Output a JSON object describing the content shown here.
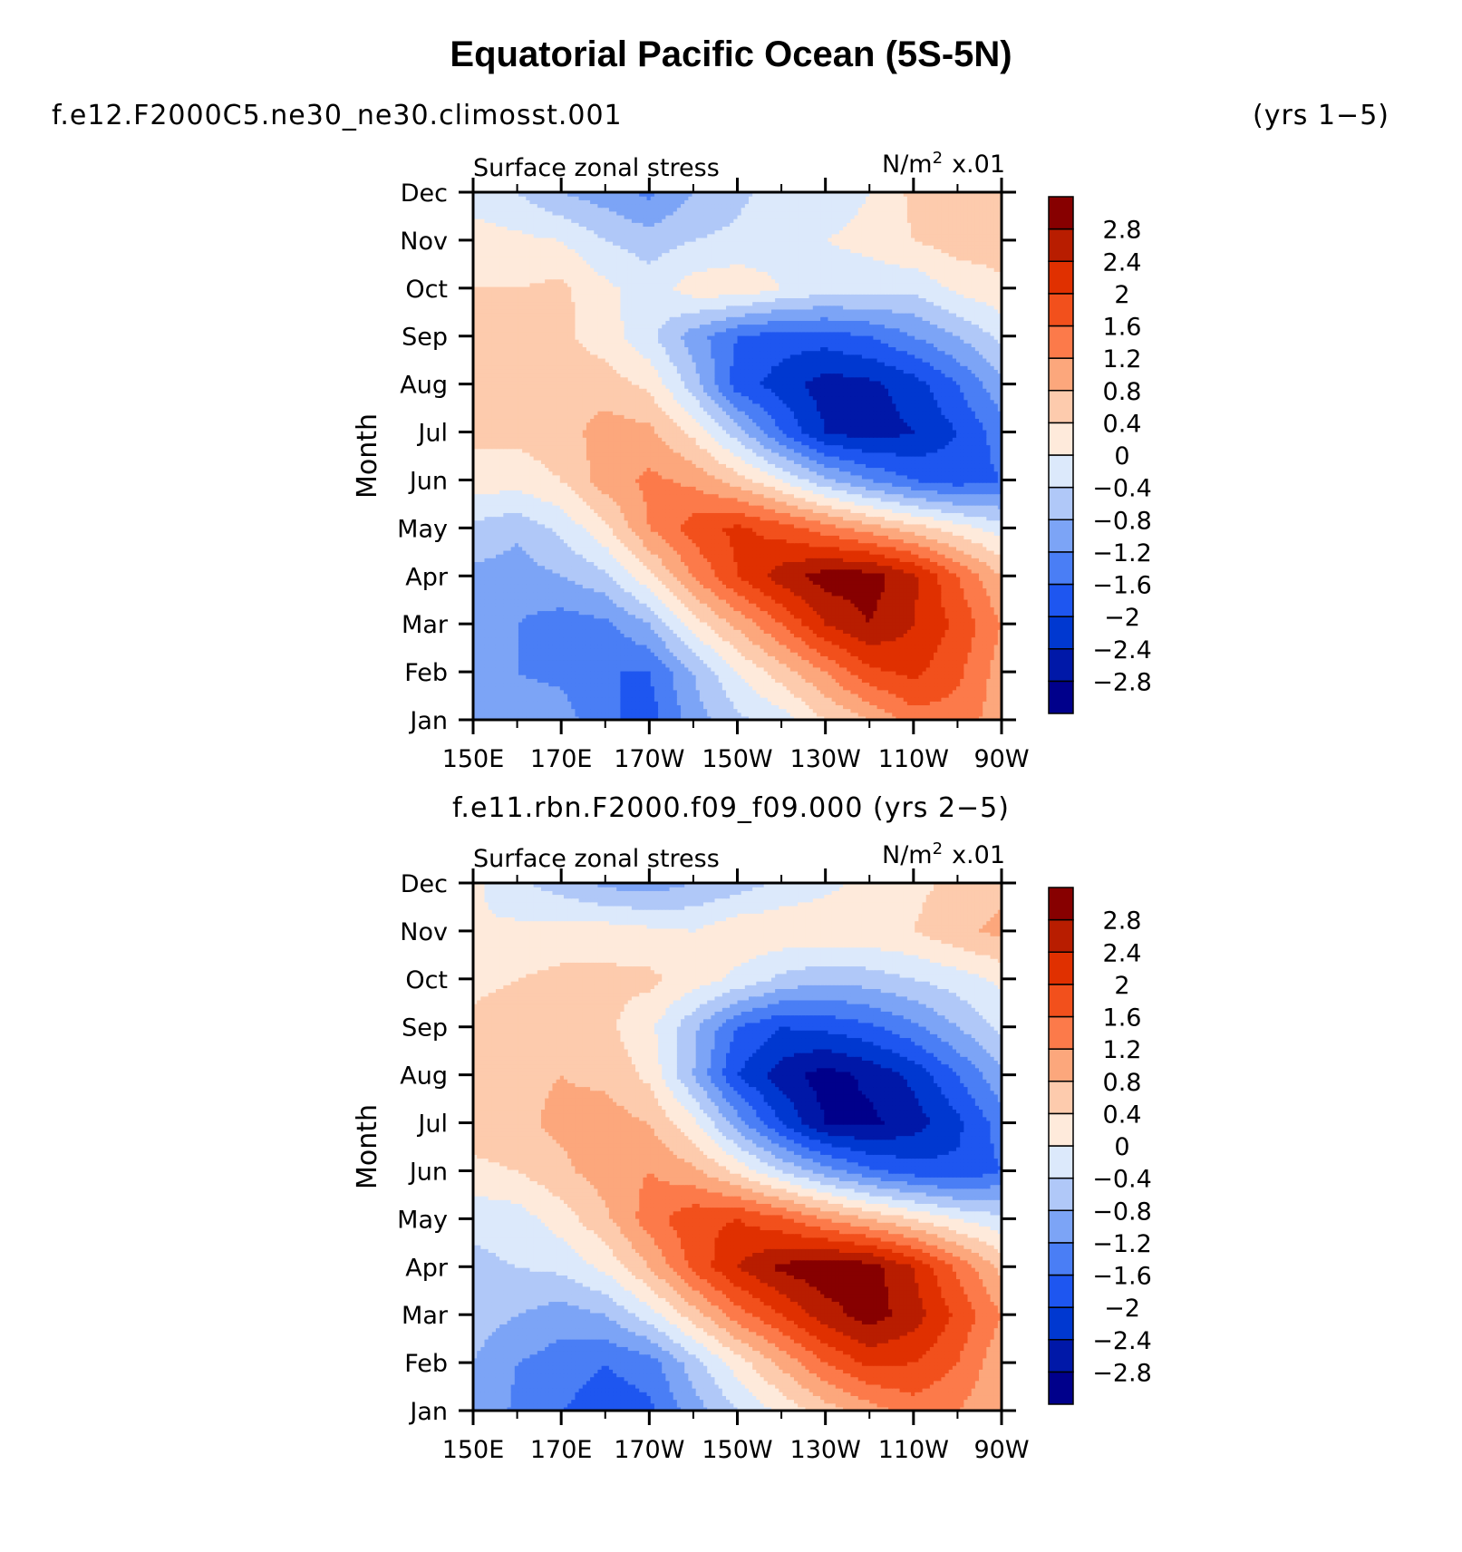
{
  "page": {
    "title": "Equatorial Pacific Ocean (5S-5N)",
    "run_left": "f.e12.F2000C5.ne30_ne30.climosst.001",
    "run_right": "(yrs  1−5)",
    "run_center": "f.e11.rbn.F2000.f09_f09.000 (yrs 2−5)"
  },
  "palette": {
    "levels": [
      -2.8,
      -2.4,
      -2.0,
      -1.6,
      -1.2,
      -0.8,
      -0.4,
      0.0,
      0.4,
      0.8,
      1.2,
      1.6,
      2.0,
      2.4,
      2.8
    ],
    "level_labels": [
      "−2.8",
      "−2.4",
      "−2",
      "−1.6",
      "−1.2",
      "−0.8",
      "−0.4",
      "0",
      "0.4",
      "0.8",
      "1.2",
      "1.6",
      "2",
      "2.4",
      "2.8"
    ],
    "colors": [
      "#00008b",
      "#0018a8",
      "#0038d0",
      "#1e56f0",
      "#4a7ef5",
      "#7ca4f6",
      "#b0c8f8",
      "#dce9fb",
      "#feeadb",
      "#fdcbad",
      "#fca77c",
      "#fc7a4a",
      "#f2501c",
      "#e03000",
      "#b81d00",
      "#870000"
    ]
  },
  "chart_data": [
    {
      "type": "heatmap",
      "title": "f.e12.F2000C5.ne30_ne30.climosst.001",
      "subtitle": "(yrs  1−5)",
      "left_label": "Surface zonal stress",
      "right_label_unit": "N/m",
      "right_label_sup": "2",
      "right_label_scale": "x.01",
      "ylabel": "Month",
      "xticks": [
        "150E",
        "170E",
        "170W",
        "150W",
        "130W",
        "110W",
        "90W"
      ],
      "yticks": [
        "Jan",
        "Feb",
        "Mar",
        "Apr",
        "May",
        "Jun",
        "Jul",
        "Aug",
        "Sep",
        "Oct",
        "Nov",
        "Dec"
      ],
      "x_lon": [
        150,
        160,
        170,
        180,
        190,
        200,
        210,
        220,
        230,
        240,
        250,
        260,
        270
      ],
      "values": [
        [
          -0.9,
          -1.0,
          -1.0,
          -1.5,
          -1.8,
          -1.0,
          -0.5,
          -0.2,
          0.4,
          0.8,
          1.4,
          1.4,
          1.0
        ],
        [
          -0.9,
          -1.2,
          -1.3,
          -1.6,
          -1.6,
          -0.8,
          0.0,
          0.6,
          1.2,
          1.9,
          2.1,
          1.7,
          1.0
        ],
        [
          -0.8,
          -1.2,
          -1.4,
          -1.3,
          -0.8,
          0.2,
          0.9,
          1.6,
          2.4,
          2.8,
          2.4,
          1.9,
          1.2
        ],
        [
          -0.9,
          -1.0,
          -0.8,
          -0.5,
          0.3,
          1.2,
          2.0,
          2.6,
          3.0,
          3.0,
          2.5,
          1.6,
          0.8
        ],
        [
          -0.5,
          -0.7,
          -0.3,
          0.3,
          1.2,
          1.8,
          2.1,
          1.8,
          1.4,
          1.0,
          0.6,
          0.2,
          -0.2
        ],
        [
          0.2,
          0.2,
          0.4,
          1.0,
          1.3,
          1.1,
          0.6,
          0.0,
          -0.7,
          -1.2,
          -1.6,
          -1.8,
          -1.6
        ],
        [
          0.5,
          0.5,
          0.6,
          1.0,
          0.9,
          0.3,
          -0.6,
          -1.6,
          -2.4,
          -2.6,
          -2.4,
          -2.0,
          -1.4
        ],
        [
          0.5,
          0.5,
          0.6,
          0.6,
          0.3,
          -0.6,
          -1.8,
          -2.2,
          -2.6,
          -2.5,
          -2.2,
          -1.6,
          -0.9
        ],
        [
          0.5,
          0.5,
          0.5,
          0.2,
          -0.3,
          -1.0,
          -1.6,
          -1.8,
          -1.8,
          -1.6,
          -1.2,
          -0.8,
          -0.3
        ],
        [
          0.4,
          0.4,
          0.5,
          0.1,
          -0.2,
          0.2,
          0.3,
          0.0,
          -0.2,
          -0.2,
          -0.3,
          0.1,
          0.3
        ],
        [
          0.2,
          0.1,
          0.0,
          -0.4,
          -0.6,
          -0.4,
          -0.3,
          -0.2,
          0.0,
          0.1,
          0.4,
          0.6,
          0.6
        ],
        [
          -0.2,
          -0.4,
          -0.8,
          -1.0,
          -1.3,
          -0.8,
          -0.5,
          -0.2,
          -0.2,
          0.0,
          0.5,
          0.6,
          0.6
        ]
      ],
      "colorbar_levels": [
        -2.8,
        -2.4,
        -2.0,
        -1.6,
        -1.2,
        -0.8,
        -0.4,
        0.0,
        0.4,
        0.8,
        1.2,
        1.6,
        2.0,
        2.4,
        2.8
      ]
    },
    {
      "type": "heatmap",
      "title": "f.e11.rbn.F2000.f09_f09.000 (yrs 2−5)",
      "left_label": "Surface zonal stress",
      "right_label_unit": "N/m",
      "right_label_sup": "2",
      "right_label_scale": "x.01",
      "ylabel": "Month",
      "xticks": [
        "150E",
        "170E",
        "170W",
        "150W",
        "130W",
        "110W",
        "90W"
      ],
      "yticks": [
        "Jan",
        "Feb",
        "Mar",
        "Apr",
        "May",
        "Jun",
        "Jul",
        "Aug",
        "Sep",
        "Oct",
        "Nov",
        "Dec"
      ],
      "x_lon": [
        150,
        160,
        170,
        180,
        190,
        200,
        210,
        220,
        230,
        240,
        250,
        260,
        270
      ],
      "values": [
        [
          -0.8,
          -1.3,
          -1.6,
          -1.8,
          -1.7,
          -1.0,
          -0.4,
          0.1,
          0.6,
          1.0,
          1.4,
          1.2,
          0.8
        ],
        [
          -0.8,
          -1.2,
          -1.4,
          -1.6,
          -1.4,
          -0.6,
          0.2,
          0.9,
          1.6,
          2.1,
          2.0,
          1.6,
          0.9
        ],
        [
          -0.6,
          -0.8,
          -1.0,
          -0.8,
          -0.2,
          0.6,
          1.4,
          2.0,
          2.6,
          3.0,
          2.6,
          1.9,
          1.2
        ],
        [
          -0.5,
          -0.4,
          -0.3,
          0.1,
          0.8,
          1.7,
          2.4,
          2.9,
          3.1,
          3.0,
          2.4,
          1.5,
          0.7
        ],
        [
          -0.3,
          -0.2,
          0.2,
          0.7,
          1.4,
          1.9,
          2.0,
          1.7,
          1.2,
          0.8,
          0.4,
          0.0,
          -0.3
        ],
        [
          0.3,
          0.4,
          0.7,
          1.0,
          1.2,
          0.9,
          0.3,
          -0.4,
          -1.0,
          -1.5,
          -1.8,
          -1.9,
          -1.6
        ],
        [
          0.6,
          0.7,
          0.9,
          1.0,
          0.8,
          0.1,
          -1.0,
          -2.0,
          -2.8,
          -2.9,
          -2.6,
          -2.1,
          -1.4
        ],
        [
          0.6,
          0.7,
          0.8,
          0.7,
          0.3,
          -0.8,
          -2.0,
          -2.6,
          -3.0,
          -2.7,
          -2.3,
          -1.6,
          -0.9
        ],
        [
          0.5,
          0.6,
          0.6,
          0.5,
          0.1,
          -0.7,
          -1.6,
          -2.0,
          -1.9,
          -1.7,
          -1.3,
          -0.8,
          -0.3
        ],
        [
          0.3,
          0.4,
          0.5,
          0.5,
          0.5,
          0.2,
          -0.1,
          -0.5,
          -0.7,
          -0.6,
          -0.4,
          -0.2,
          0.1
        ],
        [
          0.0,
          0.1,
          0.2,
          0.2,
          0.1,
          0.0,
          0.3,
          0.3,
          0.3,
          0.3,
          0.4,
          0.7,
          0.9
        ],
        [
          0.1,
          -0.3,
          -0.6,
          -0.9,
          -1.0,
          -0.8,
          -0.6,
          -0.3,
          -0.1,
          0.1,
          0.3,
          0.5,
          0.7
        ]
      ],
      "colorbar_levels": [
        -2.8,
        -2.4,
        -2.0,
        -1.6,
        -1.2,
        -0.8,
        -0.4,
        0.0,
        0.4,
        0.8,
        1.2,
        1.6,
        2.0,
        2.4,
        2.8
      ]
    }
  ]
}
